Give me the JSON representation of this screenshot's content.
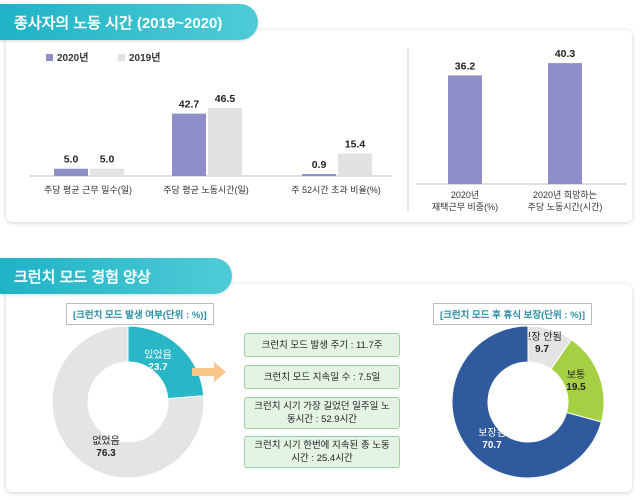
{
  "section1": {
    "title": "종사자의 노동 시간 (2019~2020)"
  },
  "section2": {
    "title": "크런치 모드 경험 양상"
  },
  "colors": {
    "series_2020": "#8e8fc8",
    "series_2019": "#e2e2e2",
    "accent": "#29b6c7",
    "green": "#a7cf43",
    "navy": "#2f5a9e",
    "box_fill": "#e4f4e4"
  },
  "chart_data": [
    {
      "type": "bar",
      "legend_position": "top-left",
      "categories": [
        "주당 평균 근무 일수(일)",
        "주당 평균 노동시간(일)",
        "주 52시간 초과 비율(%)"
      ],
      "series": [
        {
          "name": "2020년",
          "values": [
            5.0,
            42.7,
            0.9
          ]
        },
        {
          "name": "2019년",
          "values": [
            5.0,
            46.5,
            15.4
          ]
        }
      ]
    },
    {
      "type": "bar",
      "categories": [
        "2020년 재택근무 비중(%)",
        "2020년 희망하는 주당 노동시간(시간)"
      ],
      "series": [
        {
          "values": [
            36.2,
            40.3
          ]
        }
      ]
    },
    {
      "type": "pie",
      "title": "[크런치 모드 발생 여부(단위 : %)]",
      "labels": [
        "있었음",
        "없었음"
      ],
      "values": [
        23.7,
        76.3
      ]
    },
    {
      "type": "pie",
      "title": "[크런치 모드 후 휴식 보장(단위 : %)]",
      "labels": [
        "보장 안됨",
        "보통",
        "보장됨"
      ],
      "values": [
        9.7,
        19.5,
        70.7
      ]
    }
  ],
  "crunch_stats": [
    "크런치 모드 발생 주기 : 11.7주",
    "크런치 모드 지속일 수 : 7.5일",
    "크런치 시기 가장 길었던 일주일 노동시간 : 52.9시간",
    "크런치 시기 한번에 지속된 총 노동시간 : 25.4시간"
  ]
}
